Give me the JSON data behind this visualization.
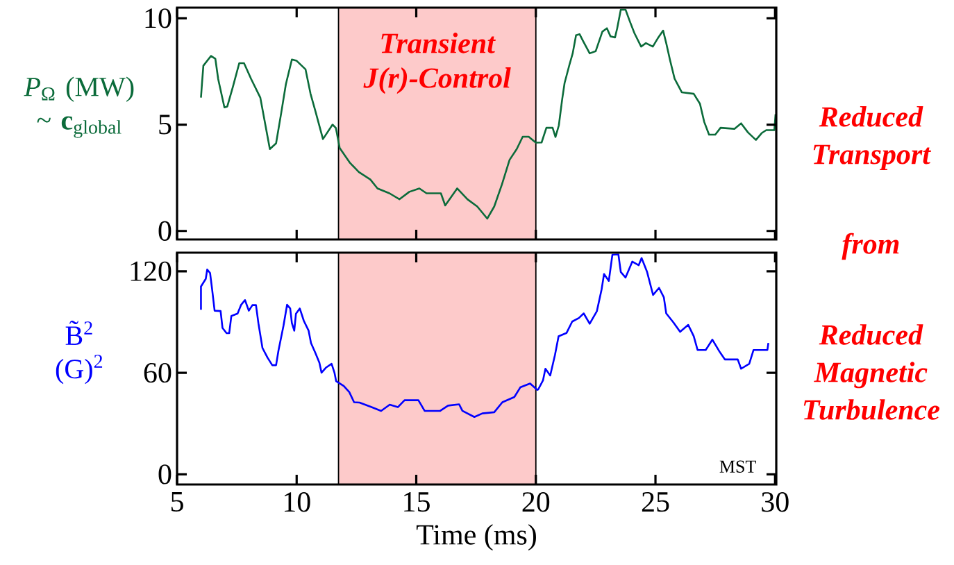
{
  "chart_data": [
    {
      "type": "line",
      "ylabel": "*P*$_{Ω}$ (MW) ~ **c**$_{global}$",
      "xlim": [
        5,
        30.05
      ],
      "ylim": [
        -0.4,
        10.5
      ],
      "xticks": [
        5,
        10,
        15,
        20,
        25,
        30
      ],
      "yticks": [
        0,
        5,
        10
      ],
      "tick_labels": "y",
      "grid": false,
      "marker": "none",
      "line_style": "solid",
      "bands": [
        {
          "axis": "x",
          "from": 11.75,
          "to": 20,
          "label": "Transient J(r)-Control",
          "color": "#fdcaca"
        }
      ],
      "annotations": [
        "Reduced Transport",
        "from",
        "Reduced Magnetic Turbulence"
      ],
      "series": [
        {
          "color": "#0b6b3a",
          "x": [
            6.0,
            6.04,
            6.1,
            6.42,
            6.6,
            6.72,
            6.98,
            7.1,
            7.34,
            7.6,
            7.8,
            8.1,
            8.48,
            8.68,
            8.88,
            9.14,
            9.35,
            9.55,
            9.8,
            10.0,
            10.37,
            10.58,
            10.78,
            11.1,
            11.5,
            11.64,
            11.8,
            12.23,
            12.6,
            13.08,
            13.38,
            13.88,
            14.3,
            14.71,
            15.13,
            15.43,
            16.03,
            16.21,
            16.71,
            17.14,
            17.55,
            17.97,
            18.26,
            18.58,
            18.9,
            19.2,
            19.45,
            19.7,
            20.0,
            20.24,
            20.44,
            20.7,
            20.82,
            20.96,
            21.1,
            21.2,
            21.4,
            21.54,
            21.68,
            21.83,
            21.97,
            22.25,
            22.5,
            22.78,
            22.97,
            23.12,
            23.31,
            23.4,
            23.55,
            23.75,
            23.93,
            24.12,
            24.4,
            24.6,
            24.89,
            25.12,
            25.32,
            25.45,
            25.61,
            25.8,
            26.1,
            26.6,
            26.86,
            27.04,
            27.24,
            27.5,
            27.72,
            28.3,
            28.58,
            28.87,
            29.2,
            29.44,
            29.63,
            29.97,
            30.02
          ],
          "values": [
            6.27,
            6.9,
            7.77,
            8.23,
            8.1,
            7.14,
            5.81,
            5.85,
            6.8,
            7.89,
            7.89,
            7.14,
            6.27,
            5.06,
            3.85,
            4.12,
            5.52,
            6.9,
            8.06,
            8.0,
            7.6,
            6.45,
            5.65,
            4.32,
            5.0,
            4.84,
            3.9,
            3.2,
            2.77,
            2.42,
            2.0,
            1.77,
            1.49,
            1.84,
            2.0,
            1.77,
            1.77,
            1.2,
            2.0,
            1.49,
            1.15,
            0.58,
            1.15,
            2.18,
            3.34,
            3.85,
            4.43,
            4.43,
            4.15,
            4.16,
            4.85,
            4.85,
            4.42,
            4.96,
            6.19,
            6.95,
            7.8,
            8.35,
            9.2,
            9.25,
            8.94,
            8.35,
            8.45,
            9.37,
            9.53,
            9.15,
            9.1,
            9.53,
            10.4,
            10.4,
            9.85,
            9.3,
            8.67,
            8.83,
            8.67,
            9.1,
            9.42,
            8.83,
            8.03,
            7.16,
            6.52,
            6.45,
            5.98,
            5.12,
            4.53,
            4.53,
            4.85,
            4.8,
            5.06,
            4.63,
            4.28,
            4.6,
            4.74,
            4.74,
            5.49
          ]
        }
      ]
    },
    {
      "type": "line",
      "ylabel": "B̃$^{2}$ (G)$^{2}$",
      "xlabel": "Time (ms)",
      "xlim": [
        5,
        30.05
      ],
      "ylim": [
        -6,
        131
      ],
      "xticks": [
        5,
        10,
        15,
        20,
        25,
        30
      ],
      "yticks": [
        0,
        60,
        120
      ],
      "grid": false,
      "marker": "none",
      "line_style": "solid",
      "bands": [
        {
          "axis": "x",
          "from": 11.75,
          "to": 20,
          "color": "#fdcaca"
        }
      ],
      "annotations": [
        "MST"
      ],
      "series": [
        {
          "color": "#0000ff",
          "x": [
            6.0,
            6.0,
            6.2,
            6.26,
            6.38,
            6.46,
            6.57,
            6.82,
            6.9,
            7.07,
            7.18,
            7.27,
            7.53,
            7.68,
            7.84,
            8.0,
            8.15,
            8.3,
            8.4,
            8.57,
            8.78,
            8.98,
            9.14,
            9.24,
            9.45,
            9.6,
            9.73,
            9.8,
            9.9,
            9.97,
            10.13,
            10.3,
            10.5,
            10.6,
            10.78,
            10.95,
            11.04,
            11.22,
            11.46,
            11.58,
            11.65,
            11.97,
            12.2,
            12.4,
            12.63,
            13.13,
            13.53,
            13.89,
            14.23,
            14.51,
            15.09,
            15.35,
            16.0,
            16.33,
            16.79,
            16.93,
            17.43,
            17.76,
            18.26,
            18.6,
            19.1,
            19.35,
            19.76,
            20.06,
            20.1,
            20.3,
            20.4,
            20.6,
            20.8,
            20.95,
            21.28,
            21.52,
            21.8,
            22.0,
            22.25,
            22.55,
            22.75,
            22.85,
            23.05,
            23.2,
            23.45,
            23.55,
            23.75,
            24.03,
            24.3,
            24.42,
            24.65,
            24.9,
            25.15,
            25.35,
            25.45,
            25.75,
            26.03,
            26.37,
            26.6,
            26.76,
            27.1,
            27.38,
            27.67,
            27.9,
            28.44,
            28.58,
            28.92,
            29.1,
            29.68,
            29.72
          ],
          "values": [
            97.3,
            111,
            115.5,
            121,
            119,
            110,
            96.7,
            96.5,
            86.5,
            83.4,
            83.4,
            93.6,
            95,
            100.2,
            103,
            96.7,
            100,
            100,
            89.4,
            74.7,
            69,
            64.5,
            64.5,
            73.2,
            87.8,
            100.2,
            98,
            89.4,
            84.9,
            94.9,
            98,
            90.7,
            84.9,
            77.6,
            71.8,
            66,
            60.1,
            63,
            65.3,
            60.1,
            55.1,
            52.2,
            48.6,
            42.6,
            42.4,
            39.7,
            37.5,
            41.2,
            39.7,
            43.8,
            43.8,
            37.5,
            37.5,
            40.6,
            41.4,
            37.5,
            33.9,
            36,
            36.7,
            42.6,
            45.7,
            51.4,
            53.7,
            49.9,
            50.2,
            55.6,
            62.4,
            58.4,
            70.6,
            81.6,
            83.5,
            90.3,
            92.4,
            95.1,
            89,
            96.4,
            109.4,
            118.4,
            114.3,
            129.8,
            130,
            119.6,
            116.3,
            125.7,
            123.6,
            127.8,
            119.6,
            106,
            110.2,
            104.6,
            95.1,
            89.8,
            84.2,
            88.3,
            81.6,
            73.5,
            73.5,
            79.6,
            72.7,
            67.9,
            67.9,
            62.4,
            65.3,
            73.5,
            73.5,
            77.6
          ]
        }
      ]
    }
  ]
}
